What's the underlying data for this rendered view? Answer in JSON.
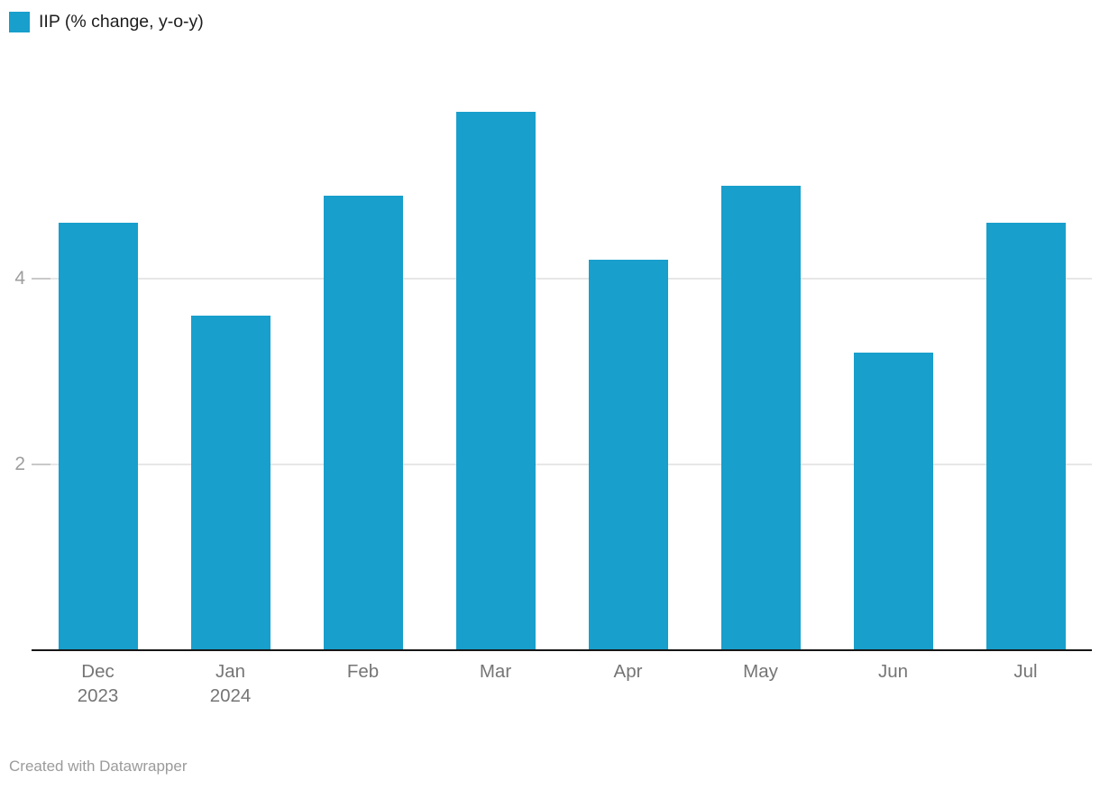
{
  "legend": {
    "label": "IIP (% change, y-o-y)"
  },
  "footer": {
    "credit": "Created with Datawrapper"
  },
  "colors": {
    "bar": "#189fcc",
    "axis_line": "#161616",
    "gridline": "#e7e7e7",
    "tick": "#c9c9c9",
    "y_tick_label": "#9e9e9e",
    "x_tick_label": "#757575",
    "legend_text": "#1d1d1d",
    "credit_text": "#9b9b9b",
    "background": "#ffffff"
  },
  "chart_data": {
    "type": "bar",
    "title": "",
    "xlabel": "",
    "ylabel": "",
    "categories": [
      "Dec 2023",
      "Jan 2024",
      "Feb",
      "Mar",
      "Apr",
      "May",
      "Jun",
      "Jul"
    ],
    "series": [
      {
        "name": "IIP (% change, y-o-y)",
        "values": [
          4.6,
          3.6,
          4.9,
          5.8,
          4.2,
          5.0,
          3.2,
          4.6
        ]
      }
    ],
    "ylim": [
      0,
      6
    ],
    "yticks": [
      2,
      4
    ],
    "grid": "horizontal",
    "legend_position": "top-left",
    "bar_color": "#189fcc"
  }
}
